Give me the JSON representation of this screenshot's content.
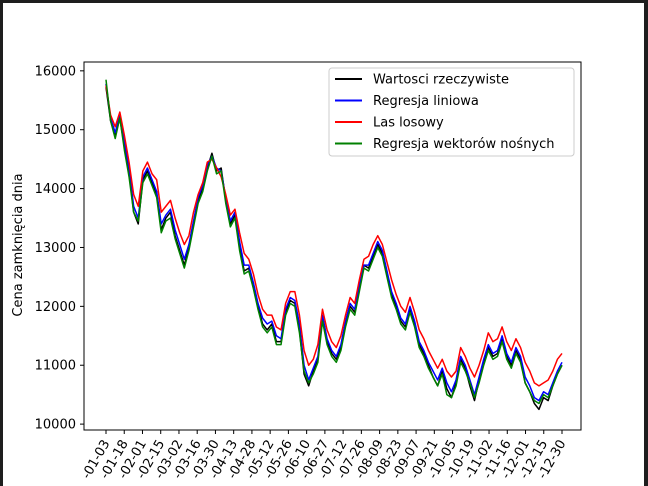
{
  "chart_data": {
    "type": "line",
    "title": "",
    "xlabel": "",
    "ylabel": "Cena zamknięcia dnia",
    "ylim": [
      9900,
      16150
    ],
    "yticks": [
      10000,
      11000,
      12000,
      13000,
      14000,
      15000,
      16000
    ],
    "x_tick_labels": [
      "-01-03",
      "-01-18",
      "-02-01",
      "-02-15",
      "-03-02",
      "-03-16",
      "-03-30",
      "-04-13",
      "-04-28",
      "-05-12",
      "-05-26",
      "-06-10",
      "-06-27",
      "-07-12",
      "-07-26",
      "-08-09",
      "-08-23",
      "-09-07",
      "-09-21",
      "-10-05",
      "-10-19",
      "-11-02",
      "-11-16",
      "-12-01",
      "-12-15",
      "-12-30"
    ],
    "legend_position": "upper-right",
    "grid": false,
    "series": [
      {
        "name": "Wartosci rzeczywiste",
        "color": "#000000",
        "values": [
          15720,
          15150,
          14900,
          15200,
          14700,
          14300,
          13600,
          13400,
          14150,
          14300,
          14100,
          13900,
          13300,
          13500,
          13600,
          13200,
          12950,
          12700,
          13000,
          13400,
          13800,
          14000,
          14350,
          14600,
          14300,
          14350,
          13800,
          13400,
          13550,
          13000,
          12600,
          12650,
          12350,
          12000,
          11700,
          11600,
          11700,
          11400,
          11400,
          11900,
          12100,
          12050,
          11600,
          10850,
          10650,
          10900,
          11100,
          11800,
          11400,
          11200,
          11100,
          11300,
          11700,
          12000,
          11900,
          12300,
          12700,
          12650,
          12850,
          13050,
          12900,
          12550,
          12200,
          12000,
          11750,
          11650,
          11950,
          11700,
          11350,
          11200,
          11000,
          10800,
          10650,
          10900,
          10600,
          10450,
          10700,
          11100,
          10950,
          10650,
          10400,
          10750,
          11050,
          11300,
          11150,
          11200,
          11450,
          11150,
          11000,
          11250,
          11100,
          10700,
          10550,
          10350,
          10250,
          10450,
          10400,
          10650,
          10850,
          11000
        ]
      },
      {
        "name": "Regresja liniowa",
        "color": "#0000ff",
        "values": [
          15780,
          15200,
          14950,
          15250,
          14800,
          14350,
          13700,
          13500,
          14200,
          14350,
          14150,
          13950,
          13400,
          13550,
          13650,
          13300,
          13050,
          12800,
          13050,
          13450,
          13850,
          14050,
          14400,
          14550,
          14350,
          14300,
          13850,
          13450,
          13600,
          13100,
          12700,
          12700,
          12400,
          12050,
          11800,
          11700,
          11750,
          11500,
          11450,
          11950,
          12150,
          12100,
          11700,
          11000,
          10750,
          10950,
          11150,
          11850,
          11450,
          11250,
          11150,
          11350,
          11750,
          12050,
          11950,
          12350,
          12700,
          12700,
          12900,
          13100,
          12950,
          12600,
          12250,
          12050,
          11800,
          11700,
          12000,
          11750,
          11400,
          11250,
          11050,
          10900,
          10750,
          10950,
          10700,
          10550,
          10750,
          11150,
          11000,
          10750,
          10500,
          10800,
          11100,
          11350,
          11200,
          11250,
          11500,
          11200,
          11050,
          11300,
          11150,
          10800,
          10650,
          10450,
          10400,
          10550,
          10500,
          10700,
          10900,
          11050
        ]
      },
      {
        "name": "Las losowy",
        "color": "#ff0000",
        "values": [
          15750,
          15250,
          15050,
          15300,
          14900,
          14450,
          13900,
          13700,
          14300,
          14450,
          14250,
          14150,
          13600,
          13700,
          13800,
          13500,
          13250,
          13050,
          13200,
          13600,
          13900,
          14100,
          14450,
          14500,
          14350,
          14200,
          13900,
          13550,
          13650,
          13250,
          12900,
          12800,
          12550,
          12200,
          11950,
          11850,
          11850,
          11650,
          11600,
          12050,
          12250,
          12250,
          11850,
          11250,
          11000,
          11100,
          11350,
          11950,
          11600,
          11400,
          11300,
          11500,
          11850,
          12150,
          12050,
          12450,
          12800,
          12850,
          13050,
          13200,
          13050,
          12750,
          12450,
          12200,
          12000,
          11900,
          12150,
          11900,
          11600,
          11450,
          11250,
          11100,
          10950,
          11100,
          10900,
          10800,
          10900,
          11300,
          11150,
          10950,
          10800,
          11000,
          11250,
          11550,
          11400,
          11450,
          11650,
          11400,
          11250,
          11450,
          11300,
          11050,
          10900,
          10700,
          10650,
          10700,
          10750,
          10900,
          11100,
          11200
        ]
      },
      {
        "name": "Regresja wektorów nośnych",
        "color": "#008000",
        "values": [
          15850,
          15150,
          14850,
          15200,
          14650,
          14200,
          13600,
          13450,
          14100,
          14250,
          14050,
          13850,
          13250,
          13450,
          13500,
          13150,
          12900,
          12650,
          12950,
          13350,
          13750,
          13950,
          14300,
          14550,
          14250,
          14300,
          13750,
          13350,
          13500,
          12950,
          12550,
          12600,
          12300,
          11950,
          11650,
          11550,
          11650,
          11350,
          11350,
          11850,
          12050,
          12000,
          11550,
          10900,
          10700,
          10850,
          11050,
          11750,
          11350,
          11150,
          11050,
          11250,
          11650,
          11950,
          11850,
          12250,
          12650,
          12600,
          12800,
          13000,
          12850,
          12500,
          12150,
          11950,
          11700,
          11600,
          11900,
          11650,
          11300,
          11150,
          10950,
          10800,
          10650,
          10850,
          10500,
          10450,
          10650,
          11050,
          10900,
          10700,
          10450,
          10700,
          11000,
          11250,
          11100,
          11150,
          11400,
          11100,
          10950,
          11200,
          11050,
          10700,
          10550,
          10400,
          10350,
          10500,
          10450,
          10650,
          10850,
          11000
        ]
      }
    ]
  }
}
